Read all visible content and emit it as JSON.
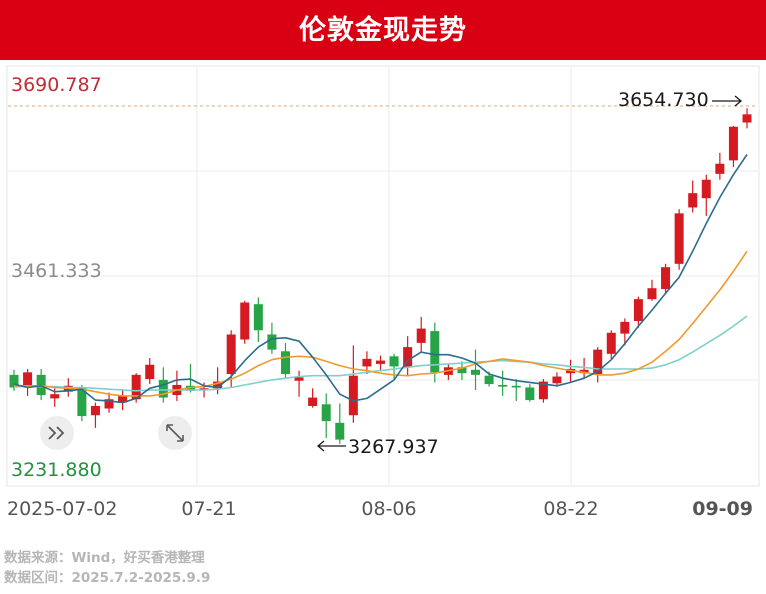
{
  "title": "伦敦金现走势",
  "source_line": "数据来源：Wind，好买香港整理",
  "range_line": "数据区间：2025.7.2-2025.9.9",
  "colors": {
    "up": "#d61a21",
    "down": "#27a348",
    "ma5": "#2b6d8c",
    "ma10": "#ef9a2c",
    "ma20": "#7fcfcb",
    "banner": "#d80012"
  },
  "icons": [
    "double-chevron-right-icon",
    "expand-arrows-icon"
  ],
  "chart_data": {
    "type": "candlestick",
    "y_ticks": [
      "3690.787",
      "3461.333",
      "3231.880"
    ],
    "ylim": [
      3231.88,
      3690.787
    ],
    "x_tick_labels": [
      "2025-07-02",
      "07-21",
      "08-06",
      "08-22",
      "09-09"
    ],
    "annotations": [
      {
        "text": "3654.730",
        "value": 3654.73,
        "arrow": "right"
      },
      {
        "text": "3267.937",
        "value": 3267.937,
        "arrow": "left"
      }
    ],
    "dashed_reference_value": 3654.73,
    "candles": [
      [
        3345,
        3330,
        3351,
        3326
      ],
      [
        3330,
        3348,
        3352,
        3320
      ],
      [
        3345,
        3321,
        3352,
        3315
      ],
      [
        3317,
        3322,
        3329,
        3307
      ],
      [
        3325,
        3332,
        3341,
        3319
      ],
      [
        3330,
        3296,
        3333,
        3290
      ],
      [
        3297,
        3308,
        3312,
        3282
      ],
      [
        3305,
        3316,
        3324,
        3300
      ],
      [
        3312,
        3320,
        3328,
        3303
      ],
      [
        3316,
        3345,
        3347,
        3312
      ],
      [
        3340,
        3357,
        3365,
        3334
      ],
      [
        3339,
        3318,
        3354,
        3312
      ],
      [
        3321,
        3333,
        3350,
        3314
      ],
      [
        3332,
        3326,
        3358,
        3324
      ],
      [
        3329,
        3329,
        3336,
        3318
      ],
      [
        3329,
        3337,
        3354,
        3322
      ],
      [
        3346,
        3393,
        3398,
        3330
      ],
      [
        3387,
        3431,
        3433,
        3382
      ],
      [
        3429,
        3398,
        3437,
        3384
      ],
      [
        3393,
        3375,
        3407,
        3370
      ],
      [
        3373,
        3346,
        3383,
        3342
      ],
      [
        3338,
        3342,
        3350,
        3319
      ],
      [
        3308,
        3318,
        3329,
        3306
      ],
      [
        3310,
        3290,
        3323,
        3270
      ],
      [
        3288,
        3268,
        3311,
        3263
      ],
      [
        3297,
        3344,
        3380,
        3288
      ],
      [
        3355,
        3364,
        3373,
        3346
      ],
      [
        3358,
        3362,
        3368,
        3349
      ],
      [
        3367,
        3355,
        3370,
        3340
      ],
      [
        3354,
        3378,
        3391,
        3343
      ],
      [
        3383,
        3400,
        3414,
        3371
      ],
      [
        3397,
        3348,
        3407,
        3336
      ],
      [
        3345,
        3354,
        3358,
        3339
      ],
      [
        3354,
        3347,
        3361,
        3339
      ],
      [
        3351,
        3345,
        3375,
        3327
      ],
      [
        3344,
        3334,
        3349,
        3331
      ],
      [
        3333,
        3331,
        3350,
        3320
      ],
      [
        3332,
        3330,
        3340,
        3314
      ],
      [
        3330,
        3315,
        3334,
        3313
      ],
      [
        3316,
        3337,
        3340,
        3312
      ],
      [
        3335,
        3343,
        3348,
        3331
      ],
      [
        3347,
        3352,
        3363,
        3336
      ],
      [
        3347,
        3351,
        3365,
        3340
      ],
      [
        3346,
        3375,
        3378,
        3336
      ],
      [
        3370,
        3395,
        3398,
        3364
      ],
      [
        3394,
        3408,
        3412,
        3380
      ],
      [
        3409,
        3435,
        3438,
        3401
      ],
      [
        3435,
        3448,
        3458,
        3433
      ],
      [
        3447,
        3473,
        3477,
        3441
      ],
      [
        3477,
        3537,
        3542,
        3470
      ],
      [
        3544,
        3561,
        3576,
        3538
      ],
      [
        3555,
        3577,
        3583,
        3534
      ],
      [
        3584,
        3596,
        3609,
        3577
      ],
      [
        3600,
        3640,
        3641,
        3592
      ],
      [
        3645,
        3654.73,
        3662,
        3638
      ]
    ],
    "ma5": [
      3334,
      3330,
      3332,
      3325,
      3326,
      3328,
      3315,
      3314,
      3312,
      3317,
      3329,
      3333,
      3339,
      3340,
      3332,
      3330,
      3343,
      3362,
      3378,
      3388,
      3389,
      3385,
      3366,
      3345,
      3322,
      3314,
      3317,
      3328,
      3339,
      3362,
      3372,
      3369,
      3369,
      3365,
      3359,
      3346,
      3341,
      3338,
      3336,
      3334,
      3332,
      3336,
      3341,
      3349,
      3363,
      3382,
      3403,
      3422,
      3442,
      3461,
      3492,
      3525,
      3556,
      3583,
      3607
    ],
    "ma10": [
      3332,
      3332,
      3332,
      3330,
      3329,
      3328,
      3325,
      3322,
      3320,
      3320,
      3320,
      3322,
      3327,
      3330,
      3331,
      3335,
      3340,
      3347,
      3356,
      3363,
      3366,
      3367,
      3366,
      3361,
      3356,
      3352,
      3350,
      3347,
      3345,
      3344,
      3346,
      3347,
      3350,
      3353,
      3358,
      3361,
      3364,
      3362,
      3360,
      3356,
      3353,
      3350,
      3348,
      3345,
      3345,
      3347,
      3352,
      3360,
      3373,
      3387,
      3406,
      3426,
      3446,
      3468,
      3492
    ],
    "ma20": [
      3331,
      3331,
      3331,
      3331,
      3330,
      3330,
      3329,
      3328,
      3327,
      3326,
      3327,
      3327,
      3327,
      3327,
      3327,
      3328,
      3330,
      3333,
      3336,
      3339,
      3341,
      3343,
      3344,
      3344,
      3344,
      3346,
      3348,
      3350,
      3352,
      3354,
      3356,
      3357,
      3358,
      3359,
      3360,
      3361,
      3362,
      3361,
      3360,
      3358,
      3357,
      3355,
      3354,
      3352,
      3352,
      3352,
      3352,
      3353,
      3357,
      3363,
      3372,
      3382,
      3392,
      3403,
      3415
    ]
  }
}
